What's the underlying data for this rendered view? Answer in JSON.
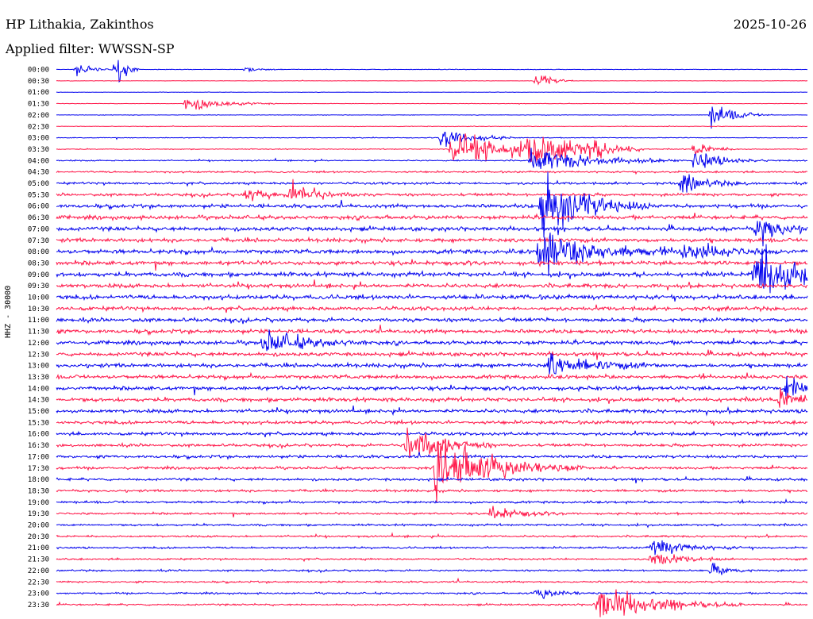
{
  "header": {
    "station": "HP Lithakia, Zakinthos",
    "date": "2025-10-26",
    "filter": "Applied filter: WWSSN-SP",
    "channel": "HHZ - 30000"
  },
  "colors": {
    "trace_a": "#0000ee",
    "trace_b": "#ff1447"
  },
  "chart_data": {
    "type": "line",
    "title": "HP Lithakia, Zakinthos",
    "subtitle": "Applied filter: WWSSN-SP",
    "ylabel": "HHZ - 30000",
    "row_labels": [
      "00:00",
      "00:30",
      "01:00",
      "01:30",
      "02:00",
      "02:30",
      "03:00",
      "03:30",
      "04:00",
      "04:30",
      "05:00",
      "05:30",
      "06:00",
      "06:30",
      "07:00",
      "07:30",
      "08:00",
      "08:30",
      "09:00",
      "09:30",
      "10:00",
      "10:30",
      "11:00",
      "11:30",
      "12:00",
      "12:30",
      "13:00",
      "13:30",
      "14:00",
      "14:30",
      "15:00",
      "15:30",
      "16:00",
      "16:30",
      "17:00",
      "17:30",
      "18:00",
      "18:30",
      "19:00",
      "19:30",
      "20:00",
      "20:30",
      "21:00",
      "21:30",
      "22:00",
      "22:30",
      "23:00",
      "23:30"
    ],
    "row_minutes": 30,
    "noise_levels": [
      0.04,
      0.03,
      0.03,
      0.03,
      0.04,
      0.05,
      0.06,
      0.07,
      0.1,
      0.14,
      0.18,
      0.22,
      0.28,
      0.3,
      0.32,
      0.3,
      0.34,
      0.32,
      0.34,
      0.32,
      0.34,
      0.3,
      0.3,
      0.3,
      0.3,
      0.3,
      0.3,
      0.3,
      0.3,
      0.3,
      0.28,
      0.26,
      0.24,
      0.22,
      0.22,
      0.2,
      0.2,
      0.18,
      0.18,
      0.16,
      0.16,
      0.15,
      0.15,
      0.14,
      0.14,
      0.14,
      0.14,
      0.14
    ],
    "events": [
      {
        "row": 0,
        "t": 0.8,
        "amp": 1.0,
        "dur": 0.6
      },
      {
        "row": 0,
        "t": 2.4,
        "amp": 3.5,
        "dur": 0.3
      },
      {
        "row": 0,
        "t": 7.6,
        "amp": 0.7,
        "dur": 0.5
      },
      {
        "row": 1,
        "t": 19.2,
        "amp": 1.6,
        "dur": 0.5
      },
      {
        "row": 3,
        "t": 5.2,
        "amp": 1.5,
        "dur": 1.2
      },
      {
        "row": 4,
        "t": 26.2,
        "amp": 2.2,
        "dur": 0.8
      },
      {
        "row": 6,
        "t": 15.4,
        "amp": 2.0,
        "dur": 1.0
      },
      {
        "row": 7,
        "t": 15.8,
        "amp": 3.0,
        "dur": 2.5
      },
      {
        "row": 7,
        "t": 18.8,
        "amp": 3.0,
        "dur": 1.5
      },
      {
        "row": 7,
        "t": 21.3,
        "amp": 1.2,
        "dur": 0.8
      },
      {
        "row": 7,
        "t": 25.5,
        "amp": 1.5,
        "dur": 0.6
      },
      {
        "row": 8,
        "t": 19.0,
        "amp": 2.5,
        "dur": 2.0
      },
      {
        "row": 8,
        "t": 25.5,
        "amp": 1.8,
        "dur": 1.0
      },
      {
        "row": 10,
        "t": 25.0,
        "amp": 1.5,
        "dur": 1.0
      },
      {
        "row": 11,
        "t": 7.6,
        "amp": 1.2,
        "dur": 0.8
      },
      {
        "row": 11,
        "t": 9.4,
        "amp": 2.0,
        "dur": 1.0
      },
      {
        "row": 12,
        "t": 19.4,
        "amp": 6.0,
        "dur": 1.5
      },
      {
        "row": 14,
        "t": 28.0,
        "amp": 3.0,
        "dur": 0.8
      },
      {
        "row": 16,
        "t": 19.3,
        "amp": 4.0,
        "dur": 2.0
      },
      {
        "row": 16,
        "t": 25.0,
        "amp": 1.5,
        "dur": 1.5
      },
      {
        "row": 18,
        "t": 27.9,
        "amp": 6.0,
        "dur": 1.5
      },
      {
        "row": 24,
        "t": 8.3,
        "amp": 2.0,
        "dur": 1.5
      },
      {
        "row": 26,
        "t": 19.7,
        "amp": 2.0,
        "dur": 1.5
      },
      {
        "row": 28,
        "t": 29.2,
        "amp": 3.0,
        "dur": 0.6
      },
      {
        "row": 29,
        "t": 28.9,
        "amp": 2.2,
        "dur": 0.6
      },
      {
        "row": 33,
        "t": 14.0,
        "amp": 4.0,
        "dur": 1.2
      },
      {
        "row": 35,
        "t": 15.2,
        "amp": 5.5,
        "dur": 2.0
      },
      {
        "row": 39,
        "t": 17.4,
        "amp": 1.3,
        "dur": 1.0
      },
      {
        "row": 42,
        "t": 23.8,
        "amp": 1.6,
        "dur": 1.2
      },
      {
        "row": 43,
        "t": 23.8,
        "amp": 1.4,
        "dur": 1.0
      },
      {
        "row": 44,
        "t": 26.2,
        "amp": 1.2,
        "dur": 0.6
      },
      {
        "row": 46,
        "t": 19.2,
        "amp": 1.0,
        "dur": 0.8
      },
      {
        "row": 47,
        "t": 21.6,
        "amp": 3.2,
        "dur": 2.0
      }
    ]
  }
}
